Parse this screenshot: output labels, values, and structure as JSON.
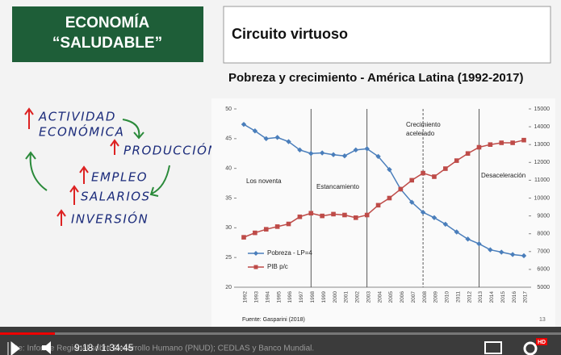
{
  "slide": {
    "badge": [
      "ECONOMÍA",
      "“SALUDABLE”"
    ],
    "heading": "Circuito virtuoso",
    "notes": [
      "ACTIVIDAD",
      "ECONÓMICA",
      "PRODUCCIÓN",
      "EMPLEO",
      "SALARIOS",
      "INVERSIÓN"
    ],
    "source": "Fuente: Gasparini (2018)",
    "page": "13",
    "caption": "nte: Informe Regional sobre Desarrollo Humano (PNUD); CEDLAS y Banco Mundial."
  },
  "player": {
    "time": "9:18 / 1:34:45",
    "hd": "HD"
  },
  "chart_data": {
    "type": "line",
    "title": "Pobreza y crecimiento - América Latina (1992-2017)",
    "categories": [
      "1992",
      "1993",
      "1994",
      "1995",
      "1996",
      "1997",
      "1998",
      "1999",
      "2000",
      "2001",
      "2002",
      "2003",
      "2004",
      "2005",
      "2006",
      "2007",
      "2008",
      "2009",
      "2010",
      "2011",
      "2012",
      "2013",
      "2014",
      "2015",
      "2016",
      "2017"
    ],
    "annotations": [
      "Los noventa",
      "Estancamiento",
      "Crecimiento",
      "acelerado",
      "Desaceleración"
    ],
    "series": [
      {
        "name": "Pobreza - LP=4",
        "color": "#4a7ebb",
        "values": [
          47.4,
          46.3,
          45.0,
          45.2,
          44.5,
          43.1,
          42.5,
          42.6,
          42.3,
          42.1,
          43.1,
          43.3,
          42.0,
          39.8,
          36.5,
          34.3,
          32.6,
          31.7,
          30.6,
          29.3,
          28.1,
          27.3,
          26.3,
          25.9,
          25.5,
          25.3
        ]
      },
      {
        "name": "PIB p/c",
        "color": "#be4b48",
        "axis": "y2",
        "values": [
          7800,
          8050,
          8250,
          8400,
          8550,
          8950,
          9150,
          9000,
          9100,
          9050,
          8900,
          9050,
          9600,
          10000,
          10500,
          11000,
          11400,
          11200,
          11650,
          12100,
          12500,
          12850,
          13000,
          13100,
          13100,
          13250
        ]
      }
    ],
    "ylim": [
      20,
      50
    ],
    "yticks": [
      20,
      25,
      30,
      35,
      40,
      45,
      50
    ],
    "y2lim": [
      5000,
      15000
    ],
    "y2ticks": [
      5000,
      6000,
      7000,
      8000,
      9000,
      10000,
      11000,
      12000,
      13000,
      14000,
      15000
    ],
    "legend": "lower-left"
  }
}
